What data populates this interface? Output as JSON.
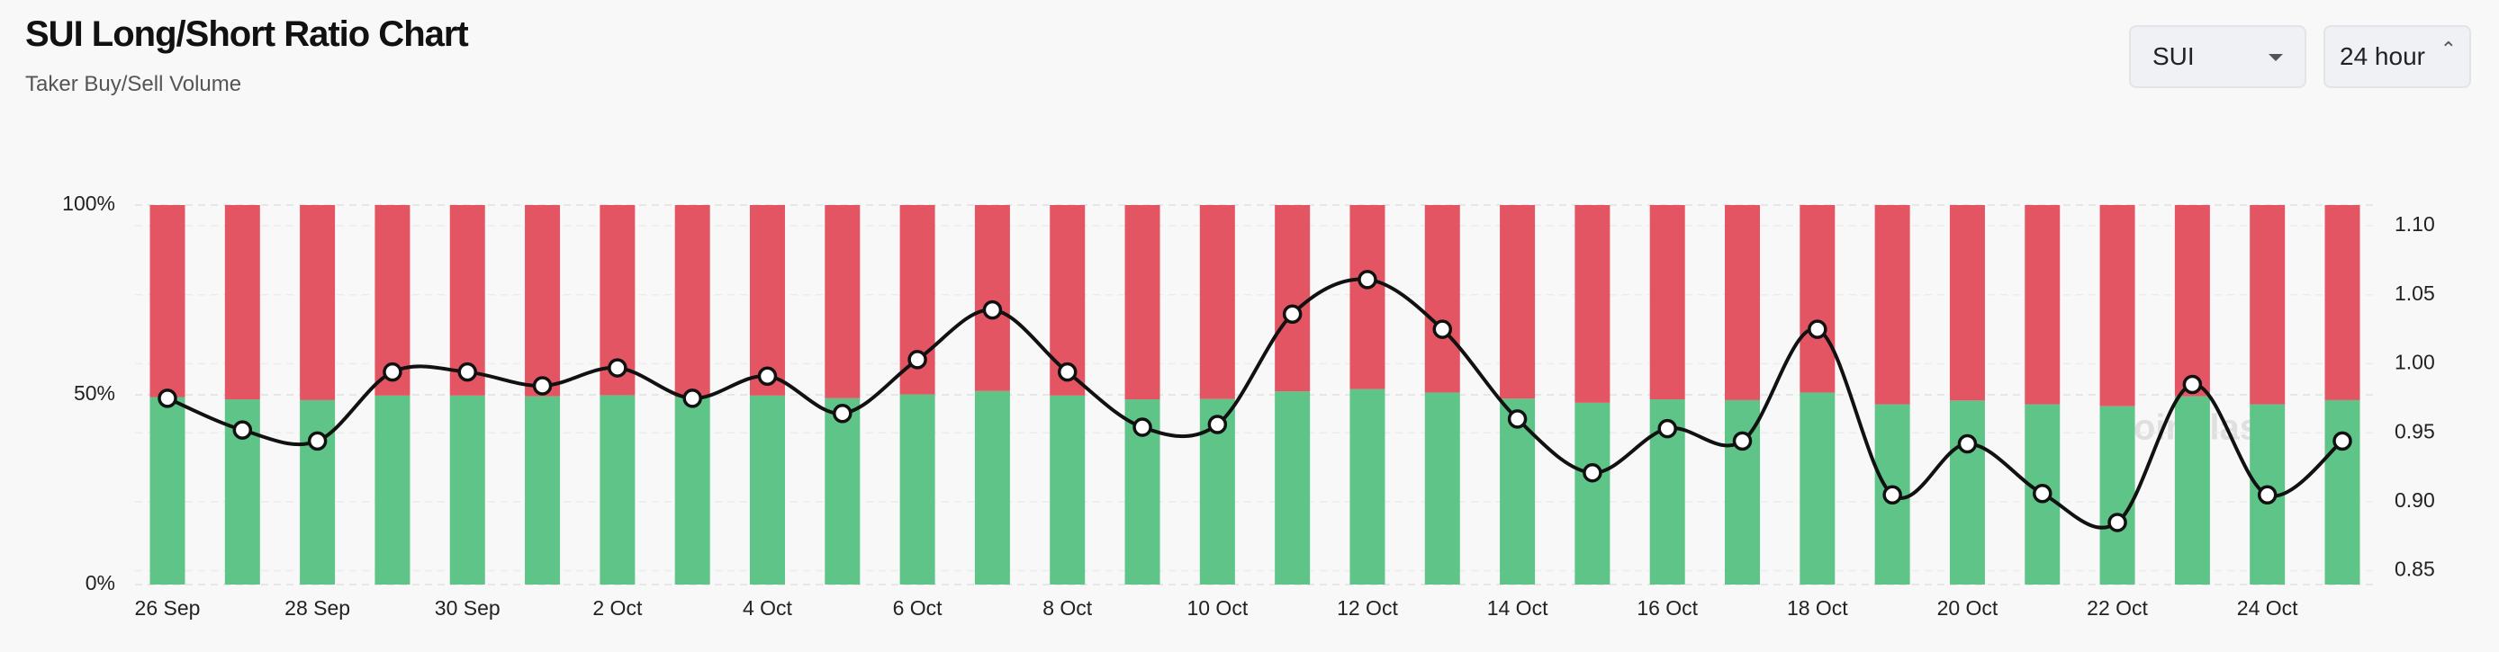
{
  "header": {
    "title": "SUI Long/Short Ratio Chart",
    "subtitle": "Taker Buy/Sell Volume"
  },
  "controls": {
    "symbol": "SUI",
    "interval": "24 hour"
  },
  "chart_data": {
    "type": "stacked-bar-line",
    "watermark": "coinglass",
    "categories": [
      "26 Sep",
      null,
      "28 Sep",
      null,
      "30 Sep",
      null,
      "2 Oct",
      null,
      "4 Oct",
      null,
      "6 Oct",
      null,
      "8 Oct",
      null,
      "10 Oct",
      null,
      "12 Oct",
      null,
      "14 Oct",
      null,
      "16 Oct",
      null,
      "18 Oct",
      null,
      "20 Oct",
      null,
      "22 Oct",
      null,
      "24 Oct",
      null
    ],
    "ylim": [
      0,
      100
    ],
    "yticks": [
      {
        "value": 0,
        "label": "0%"
      },
      {
        "value": 50,
        "label": "50%"
      },
      {
        "value": 100,
        "label": "100%"
      }
    ],
    "y2lim": [
      0.84,
      1.115
    ],
    "y2ticks": [
      0.85,
      {
        "value": 0.9,
        "label": "0.90"
      },
      0.95,
      {
        "value": 1.0,
        "label": "1.00"
      },
      1.05,
      {
        "value": 1.1,
        "label": "1.10"
      }
    ],
    "grid": true,
    "series": [
      {
        "kind": "bar",
        "color": "#5ec488",
        "values": [
          49.4,
          48.8,
          48.6,
          49.8,
          49.8,
          49.6,
          49.9,
          49.4,
          49.8,
          49.1,
          50.1,
          51.0,
          49.8,
          48.8,
          48.9,
          50.9,
          51.5,
          50.6,
          49.0,
          47.9,
          48.8,
          48.6,
          50.6,
          47.5,
          48.5,
          47.5,
          47.0,
          49.6,
          47.5,
          48.6
        ]
      },
      {
        "kind": "bar",
        "color": "#e45563",
        "values": [
          50.6,
          51.2,
          51.4,
          50.2,
          50.2,
          50.4,
          50.1,
          50.6,
          50.2,
          50.9,
          49.9,
          49.0,
          50.2,
          51.2,
          51.1,
          49.1,
          48.5,
          49.4,
          51.0,
          52.1,
          51.2,
          51.4,
          49.4,
          52.5,
          51.5,
          52.5,
          53.0,
          50.4,
          52.5,
          51.4
        ]
      },
      {
        "kind": "line",
        "axis": "y2",
        "color": "#111111",
        "values": [
          0.975,
          0.952,
          0.944,
          0.994,
          0.994,
          0.984,
          0.997,
          0.975,
          0.991,
          0.964,
          1.003,
          1.039,
          0.994,
          0.954,
          0.956,
          1.036,
          1.061,
          1.025,
          0.96,
          0.921,
          0.953,
          0.944,
          1.025,
          0.905,
          0.942,
          0.906,
          0.885,
          0.985,
          0.905,
          0.944
        ]
      }
    ]
  }
}
